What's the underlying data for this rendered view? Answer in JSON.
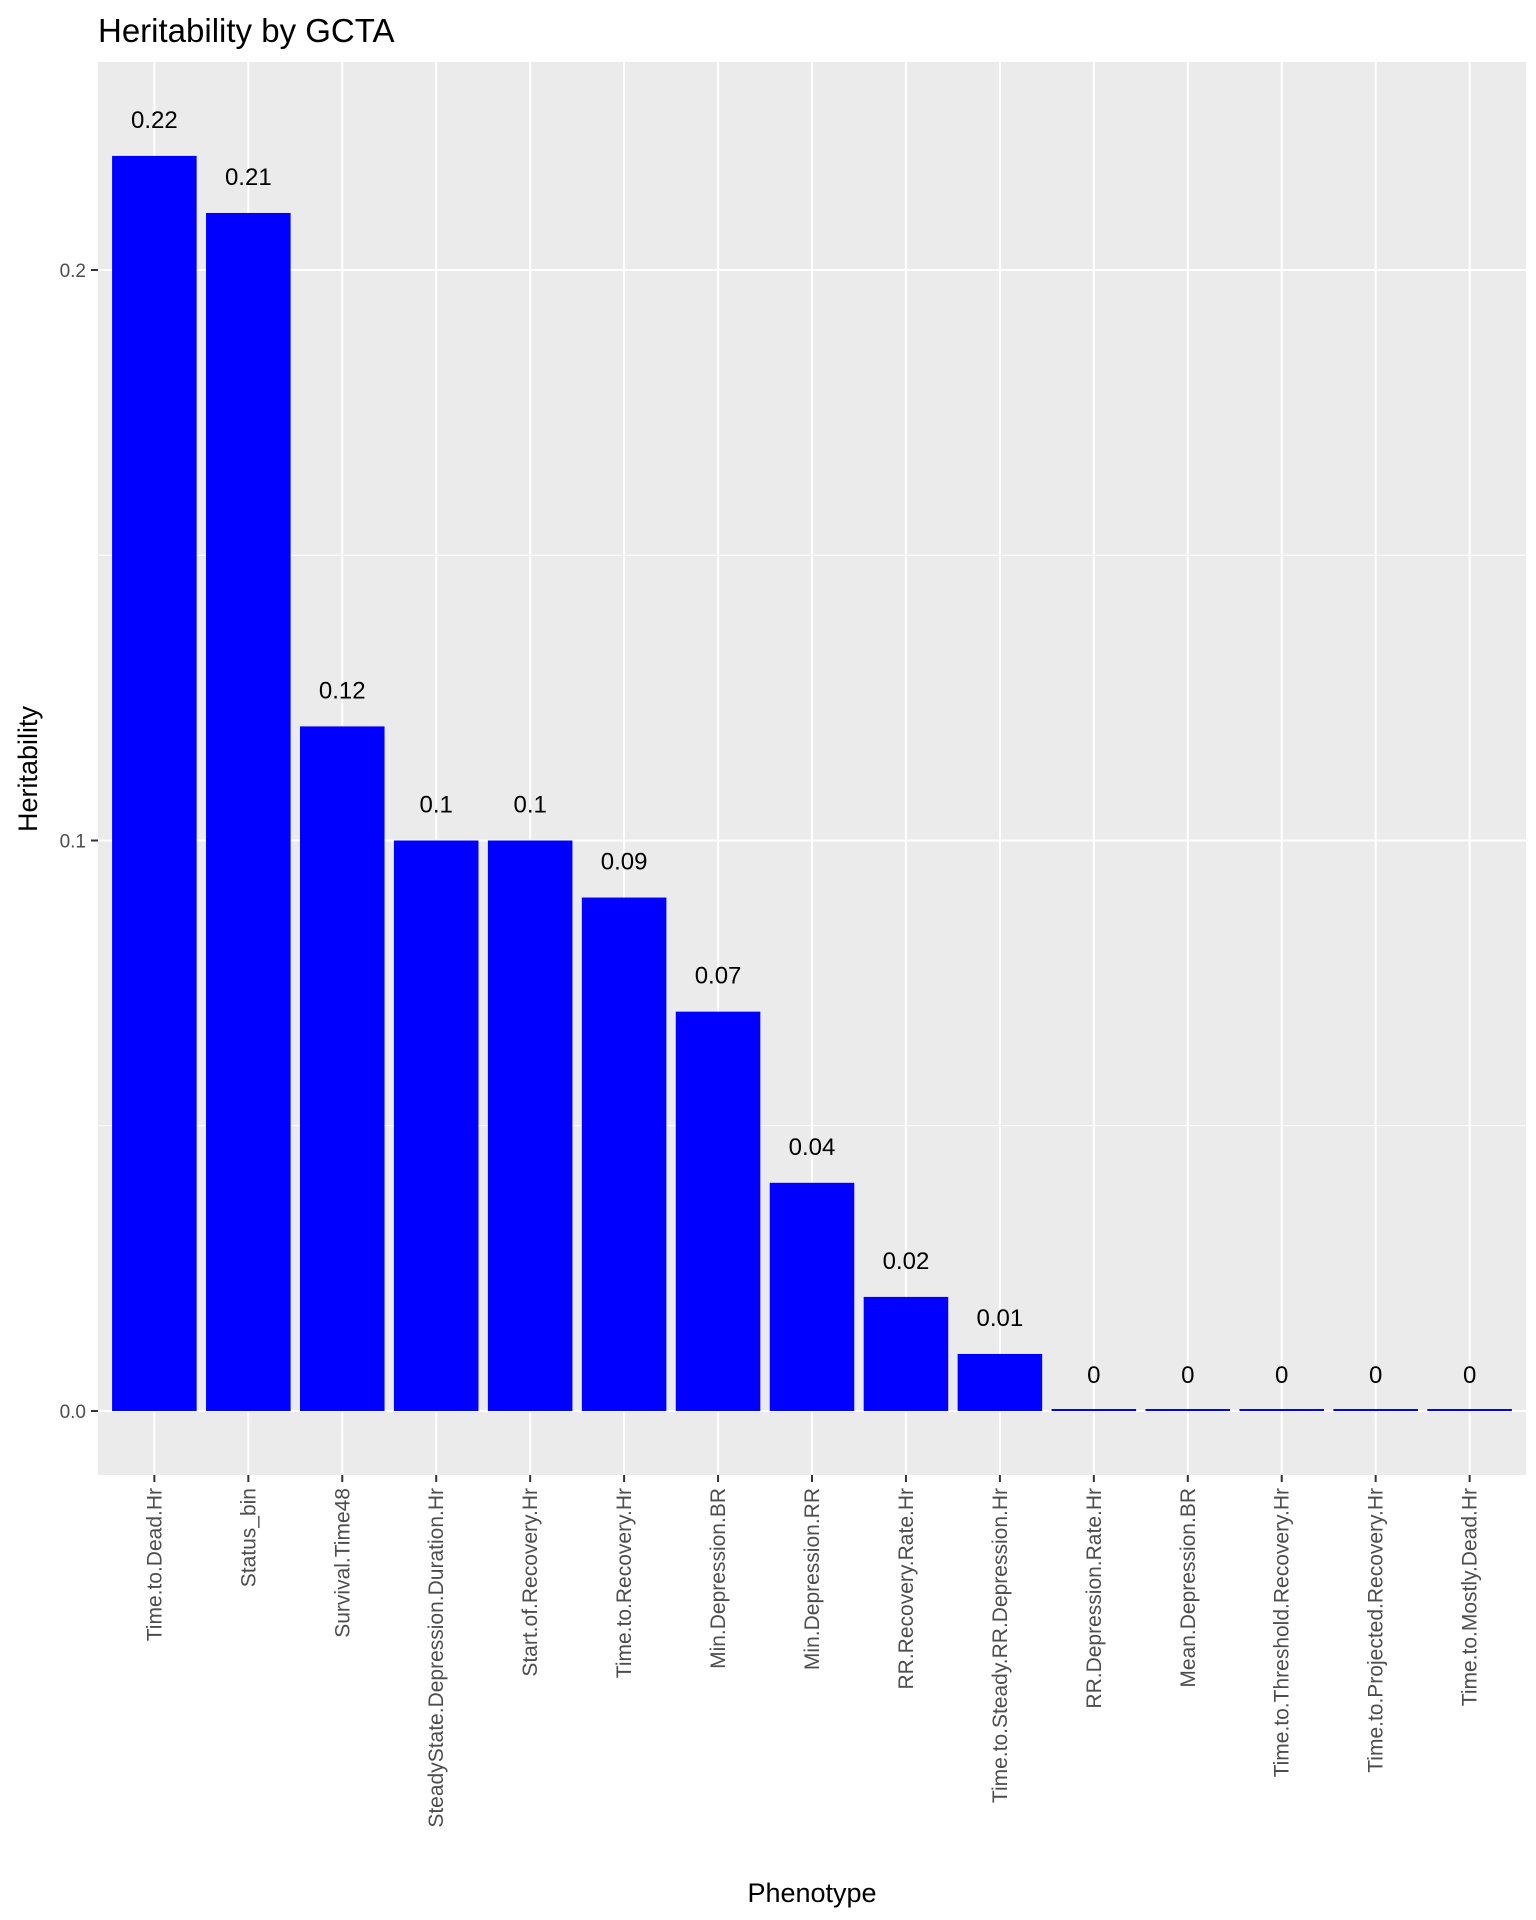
{
  "chart_data": {
    "type": "bar",
    "title": "Heritability by GCTA",
    "xlabel": "Phenotype",
    "ylabel": "Heritability",
    "categories": [
      "Time.to.Dead.Hr",
      "Status_bin",
      "Survival.Time48",
      "SteadyState.Depression.Duration.Hr",
      "Start.of.Recovery.Hr",
      "Time.to.Recovery.Hr",
      "Min.Depression.BR",
      "Min.Depression.RR",
      "RR.Recovery.Rate.Hr",
      "Time.to.Steady.RR.Depression.Hr",
      "RR.Depression.Rate.Hr",
      "Mean.Depression.BR",
      "Time.to.Threshold.Recovery.Hr",
      "Time.to.Projected.Recovery.Hr",
      "Time.to.Mostly.Dead.Hr"
    ],
    "values": [
      0.22,
      0.21,
      0.12,
      0.1,
      0.1,
      0.09,
      0.07,
      0.04,
      0.02,
      0.01,
      0,
      0,
      0,
      0,
      0
    ],
    "data_labels": [
      "0.22",
      "0.21",
      "0.12",
      "0.1",
      "0.1",
      "0.09",
      "0.07",
      "0.04",
      "0.02",
      "0.01",
      "0",
      "0",
      "0",
      "0",
      "0"
    ],
    "y_ticks": [
      {
        "value": 0.0,
        "label": "0.0"
      },
      {
        "value": 0.1,
        "label": "0.1"
      },
      {
        "value": 0.2,
        "label": "0.2"
      }
    ],
    "ylim": [
      -0.011,
      0.236
    ],
    "grid": true,
    "legend": "none",
    "bar_color": "#0000ff",
    "panel_color": "#ebebeb",
    "grid_color": "#ffffff"
  }
}
